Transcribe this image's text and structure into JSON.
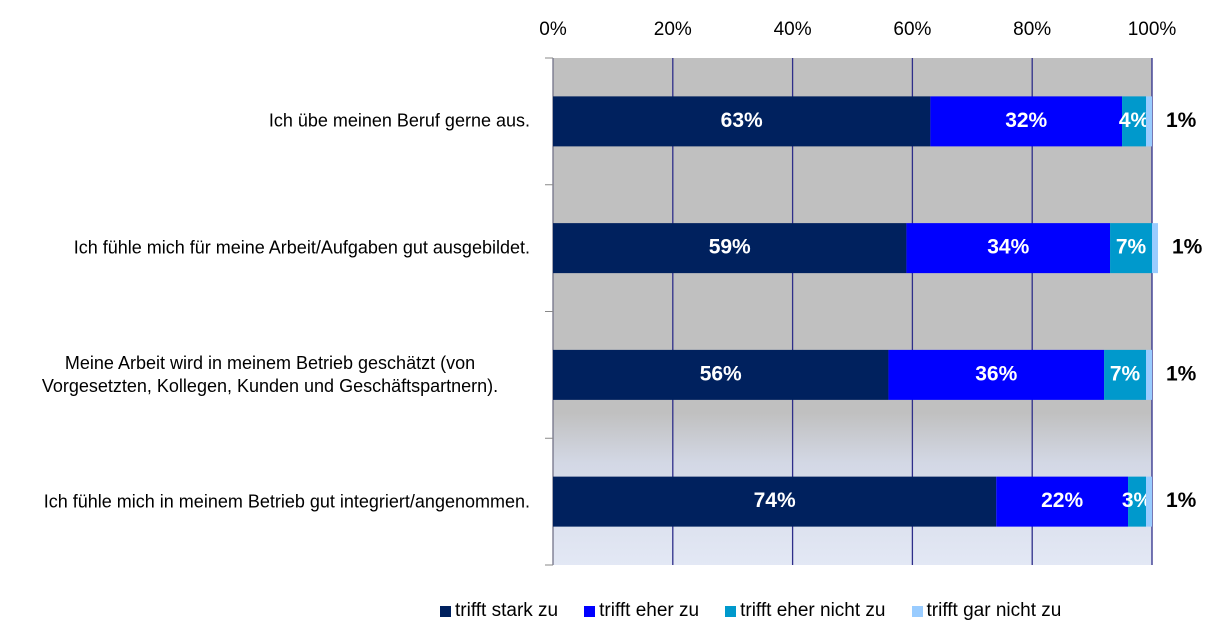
{
  "chart_data": {
    "type": "stacked_barh",
    "categories": [
      "Ich übe meinen Beruf gerne aus.",
      "Ich fühle mich für meine Arbeit/Aufgaben gut ausgebildet.",
      "Meine Arbeit wird in meinem Betrieb geschätzt (von Vorgesetzten, Kollegen, Kunden und Geschäftspartnern).",
      "Ich fühle mich in meinem Betrieb gut integriert/angenommen."
    ],
    "series": [
      {
        "name": "trifft stark zu",
        "color": "#00215e",
        "values": [
          63,
          59,
          56,
          74
        ],
        "value_labels": [
          "63%",
          "59%",
          "56%",
          "74%"
        ]
      },
      {
        "name": "trifft eher zu",
        "color": "#0000ff",
        "values": [
          32,
          34,
          36,
          22
        ],
        "value_labels": [
          "32%",
          "34%",
          "36%",
          "22%"
        ]
      },
      {
        "name": "trifft eher nicht zu",
        "color": "#0099cc",
        "values": [
          4,
          7,
          7,
          3
        ],
        "value_labels": [
          "4%",
          "7%",
          "7%",
          "3%"
        ]
      },
      {
        "name": "trifft gar nicht zu",
        "color": "#99ccff",
        "values": [
          1,
          1,
          1,
          1
        ],
        "value_labels": [
          "1%",
          "1%",
          "1%",
          "1%"
        ]
      }
    ],
    "xlim": [
      0,
      100
    ],
    "xticks": [
      {
        "value": 0,
        "label": "0%"
      },
      {
        "value": 20,
        "label": "20%"
      },
      {
        "value": 40,
        "label": "40%"
      },
      {
        "value": 60,
        "label": "60%"
      },
      {
        "value": 80,
        "label": "80%"
      },
      {
        "value": 100,
        "label": "100%"
      }
    ],
    "grid": true,
    "legend": "bottom"
  }
}
